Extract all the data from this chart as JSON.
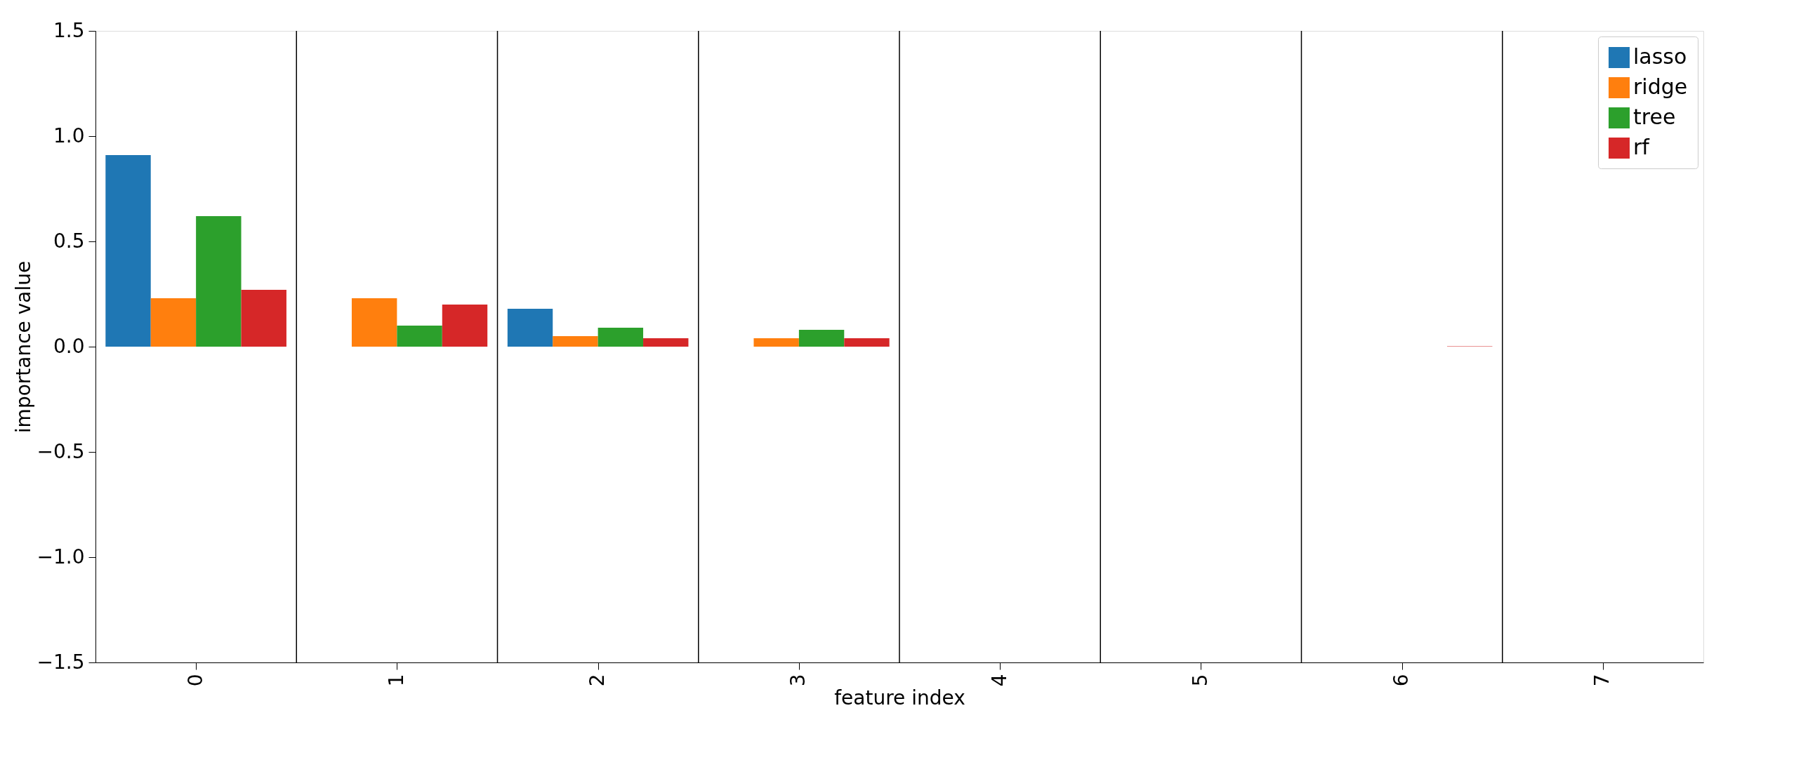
{
  "chart_data": {
    "type": "bar",
    "xlabel": "feature index",
    "ylabel": "importance value",
    "x": [
      0,
      1,
      2,
      3,
      4,
      5,
      6,
      7
    ],
    "xlim": [
      -0.5,
      7.5
    ],
    "xticks": [
      0,
      1,
      2,
      3,
      4,
      5,
      6,
      7
    ],
    "ylim": [
      -1.5,
      1.5
    ],
    "yticks": [
      {
        "value": -1.5,
        "label": "−1.5"
      },
      {
        "value": -1,
        "label": "−1.0"
      },
      {
        "value": -0.5,
        "label": "−0.5"
      },
      {
        "value": 0,
        "label": "0.0"
      },
      {
        "value": 0.5,
        "label": "0.5"
      },
      {
        "value": 1,
        "label": "1.0"
      },
      {
        "value": 1.5,
        "label": "1.5"
      }
    ],
    "series": [
      {
        "name": "lasso",
        "color": "#1f77b4",
        "values": [
          0.91,
          0,
          0.18,
          0,
          0,
          0,
          0,
          0
        ]
      },
      {
        "name": "ridge",
        "color": "#ff7f0e",
        "values": [
          0.23,
          0.23,
          0.05,
          0.04,
          0,
          0,
          0,
          0
        ]
      },
      {
        "name": "tree",
        "color": "#2ca02c",
        "values": [
          0.62,
          0.1,
          0.09,
          0.08,
          0,
          0,
          0,
          0
        ]
      },
      {
        "name": "rf",
        "color": "#d62728",
        "values": [
          0.27,
          0.2,
          0.04,
          0.04,
          0,
          0,
          0.002,
          0
        ]
      }
    ],
    "ref_lines": [
      {
        "axis": "x",
        "value": 0.5,
        "color": "#000000"
      },
      {
        "axis": "x",
        "value": 1.5,
        "color": "#000000"
      },
      {
        "axis": "x",
        "value": 2.5,
        "color": "#000000"
      },
      {
        "axis": "x",
        "value": 3.5,
        "color": "#000000"
      },
      {
        "axis": "x",
        "value": 4.5,
        "color": "#000000"
      },
      {
        "axis": "x",
        "value": 5.5,
        "color": "#000000"
      },
      {
        "axis": "x",
        "value": 6.5,
        "color": "#000000"
      }
    ],
    "legend": "top right",
    "grid": false
  }
}
